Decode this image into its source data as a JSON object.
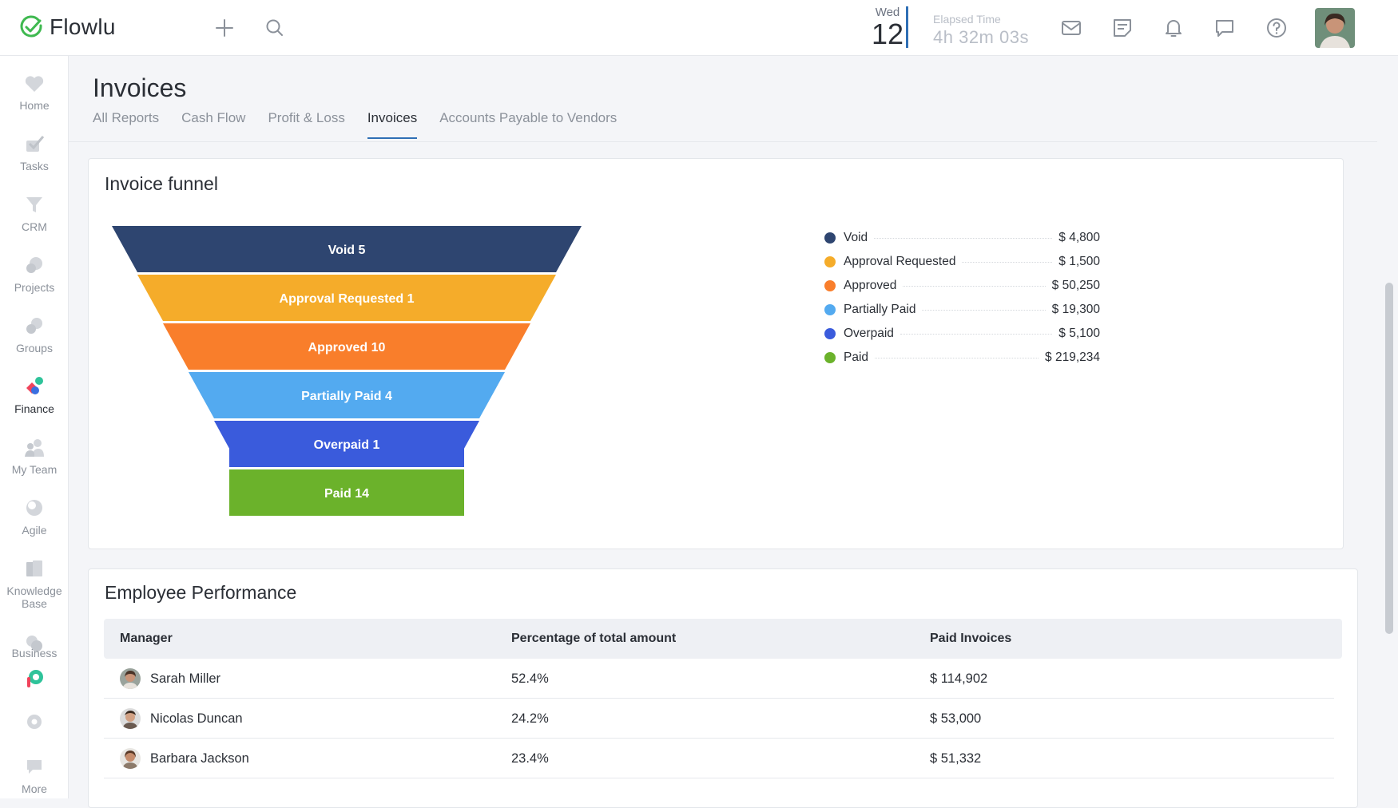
{
  "app": {
    "name": "Flowlu"
  },
  "header": {
    "date_dow": "Wed",
    "date_day": "12",
    "elapsed_label": "Elapsed Time",
    "elapsed_value": "4h 32m 03s"
  },
  "sidebar": {
    "items": [
      {
        "label": "Home"
      },
      {
        "label": "Tasks"
      },
      {
        "label": "CRM"
      },
      {
        "label": "Projects"
      },
      {
        "label": "Groups"
      },
      {
        "label": "Finance"
      },
      {
        "label": "My Team"
      },
      {
        "label": "Agile"
      },
      {
        "label": "Knowledge"
      },
      {
        "label": "Base"
      },
      {
        "label": "Business"
      },
      {
        "label": "More"
      }
    ]
  },
  "page": {
    "title": "Invoices",
    "tabs": [
      {
        "label": "All Reports"
      },
      {
        "label": "Cash Flow"
      },
      {
        "label": "Profit & Loss"
      },
      {
        "label": "Invoices"
      },
      {
        "label": "Accounts Payable to Vendors"
      }
    ]
  },
  "funnel": {
    "title": "Invoice funnel",
    "stages": [
      {
        "name": "Void",
        "count": 5,
        "label": "Void 5",
        "amount": "$ 4,800",
        "color": "#2e4570"
      },
      {
        "name": "Approval Requested",
        "count": 1,
        "label": "Approval Requested 1",
        "amount": "$ 1,500",
        "color": "#f5ac2a"
      },
      {
        "name": "Approved",
        "count": 10,
        "label": "Approved 10",
        "amount": "$ 50,250",
        "color": "#f97e2b"
      },
      {
        "name": "Partially Paid",
        "count": 4,
        "label": "Partially Paid 4",
        "amount": "$ 19,300",
        "color": "#53aaf0"
      },
      {
        "name": "Overpaid",
        "count": 1,
        "label": "Overpaid 1",
        "amount": "$ 5,100",
        "color": "#3a5bdc"
      },
      {
        "name": "Paid",
        "count": 14,
        "label": "Paid 14",
        "amount": "$ 219,234",
        "color": "#6bb22b"
      }
    ]
  },
  "performance": {
    "title": "Employee Performance",
    "columns": [
      "Manager",
      "Percentage of total amount",
      "Paid Invoices"
    ],
    "rows": [
      {
        "manager": "Sarah Miller",
        "percentage": "52.4%",
        "paid": "$ 114,902"
      },
      {
        "manager": "Nicolas Duncan",
        "percentage": "24.2%",
        "paid": "$ 53,000"
      },
      {
        "manager": "Barbara Jackson",
        "percentage": "23.4%",
        "paid": "$ 51,332"
      }
    ]
  }
}
